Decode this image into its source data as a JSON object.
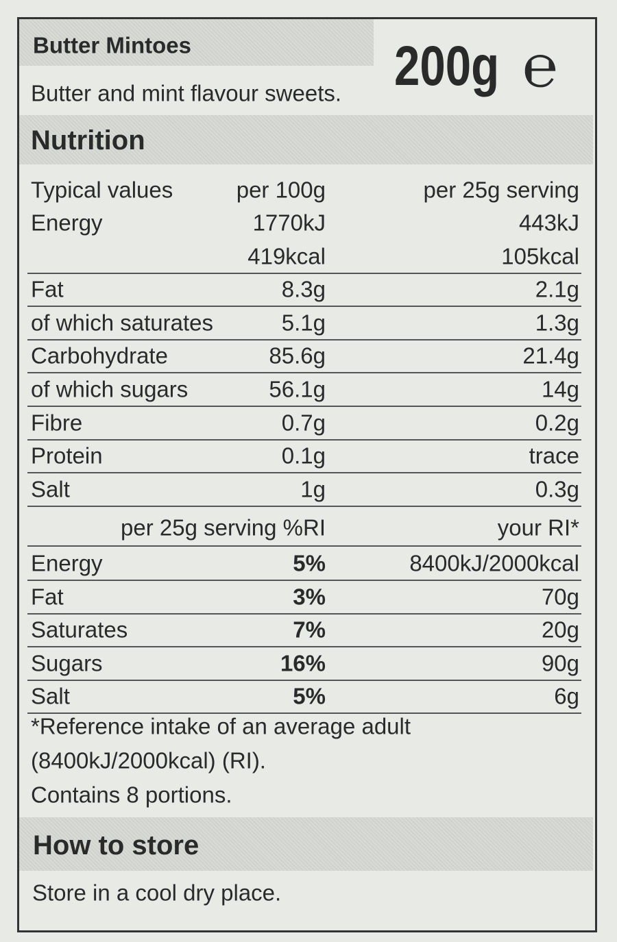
{
  "product": {
    "name": "Butter Mintoes",
    "description": "Butter and mint flavour sweets.",
    "weight": "200g",
    "estimate_mark": "℮"
  },
  "nutrition": {
    "heading": "Nutrition",
    "columns": [
      "Typical values",
      "per 100g",
      "per 25g serving"
    ],
    "rows": [
      [
        "Energy",
        [
          "1770kJ",
          "419kcal"
        ],
        [
          "443kJ",
          "105kcal"
        ]
      ],
      [
        "Fat",
        "8.3g",
        "2.1g"
      ],
      [
        "of which saturates",
        "5.1g",
        "1.3g"
      ],
      [
        "Carbohydrate",
        "85.6g",
        "21.4g"
      ],
      [
        "of which sugars",
        "56.1g",
        "14g"
      ],
      [
        "Fibre",
        "0.7g",
        "0.2g"
      ],
      [
        "Protein",
        "0.1g",
        "trace"
      ],
      [
        "Salt",
        "1g",
        "0.3g"
      ]
    ],
    "ri_columns": [
      "per 25g serving %RI",
      "your RI*"
    ],
    "ri_rows": [
      [
        "Energy",
        "5%",
        "8400kJ/2000kcal"
      ],
      [
        "Fat",
        "3%",
        "70g"
      ],
      [
        "Saturates",
        "7%",
        "20g"
      ],
      [
        "Sugars",
        "16%",
        "90g"
      ],
      [
        "Salt",
        "5%",
        "6g"
      ]
    ],
    "footnotes": [
      "*Reference intake of an average adult",
      "(8400kJ/2000kcal) (RI).",
      "Contains 8 portions."
    ]
  },
  "storage": {
    "heading": "How to store",
    "text": "Store in a cool dry place."
  }
}
